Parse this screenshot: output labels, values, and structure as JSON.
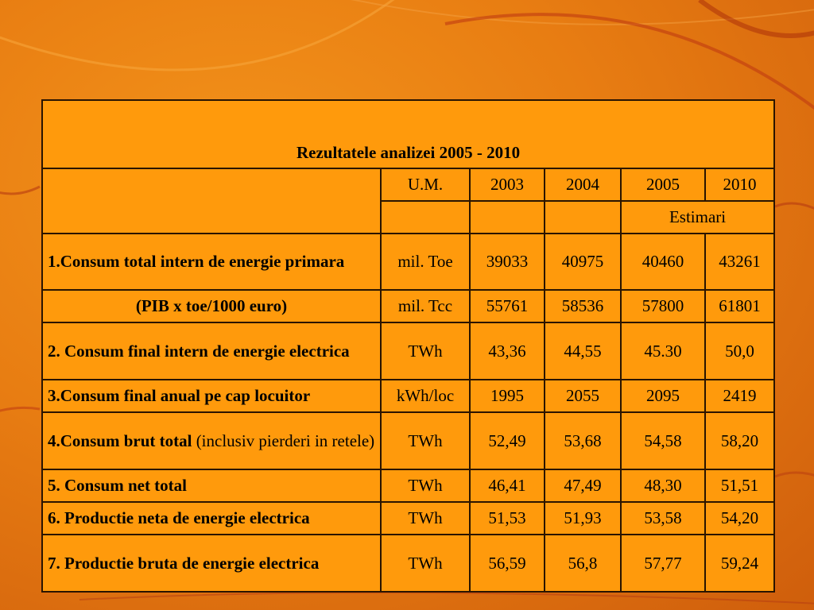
{
  "table": {
    "title": "Rezultatele analizei 2005 - 2010",
    "header": {
      "um": "U.M.",
      "years": [
        "2003",
        "2004",
        "2005",
        "2010"
      ],
      "estimari": "Estimari"
    },
    "rows": [
      {
        "label": "1.Consum total intern de energie primara",
        "um": "mil. Toe",
        "values": [
          "39033",
          "40975",
          "40460",
          "43261"
        ]
      },
      {
        "label": "(PIB x toe/1000 euro)",
        "um": "mil. Tcc",
        "values": [
          "55761",
          "58536",
          "57800",
          "61801"
        ]
      },
      {
        "label": "2. Consum final intern de energie electrica",
        "um": "TWh",
        "values": [
          "43,36",
          "44,55",
          "45.30",
          "50,0"
        ]
      },
      {
        "label": "3.Consum final anual pe cap locuitor",
        "um": "kWh/loc",
        "values": [
          "1995",
          "2055",
          "2095",
          "2419"
        ]
      },
      {
        "label_bold": "4.Consum brut total",
        "label_rest": " (inclusiv pierderi in retele)",
        "um": "TWh",
        "values": [
          "52,49",
          "53,68",
          "54,58",
          "58,20"
        ]
      },
      {
        "label": "5. Consum net total",
        "um": "TWh",
        "values": [
          "46,41",
          "47,49",
          "48,30",
          "51,51"
        ]
      },
      {
        "label": "6. Productie neta de energie electrica",
        "um": "TWh",
        "values": [
          "51,53",
          "51,93",
          "53,58",
          "54,20"
        ]
      },
      {
        "label": "7. Productie bruta de energie electrica",
        "um": "TWh",
        "values": [
          "56,59",
          "56,8",
          "57,77",
          "59,24"
        ]
      }
    ]
  }
}
